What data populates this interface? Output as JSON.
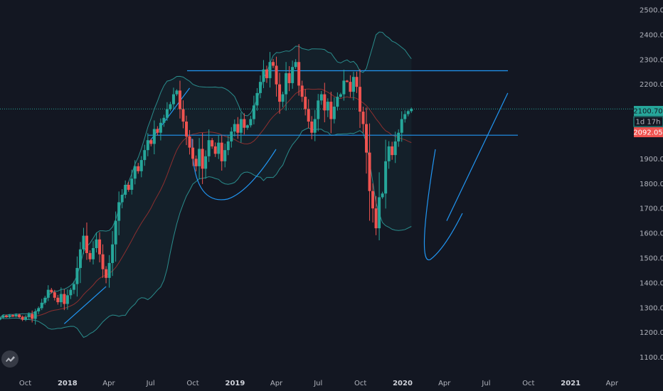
{
  "colors": {
    "background": "#131722",
    "up_candle": "#26a69a",
    "down_candle": "#ef5350",
    "bollinger_band": "#2a8c8c",
    "moving_average": "#8c2f2f",
    "drawing": "#2196f3",
    "price_line": "#26a69a",
    "axis_text": "#b2b5be"
  },
  "logo_icon": "tradingview-logo-icon",
  "price_tags": {
    "last_price": "2100.70",
    "countdown": "1d 17h",
    "prev_close": "2092.05"
  },
  "chart_data": {
    "type": "candlestick",
    "interval": "weekly",
    "y_axis": {
      "ticks": [
        1100,
        1200,
        1300,
        1400,
        1500,
        1600,
        1700,
        1800,
        1900,
        2000,
        2100,
        2200,
        2300,
        2400,
        2500
      ],
      "tick_labels": [
        "1100.00",
        "1200.00",
        "1300.00",
        "1400.00",
        "1500.00",
        "1600.00",
        "1700.00",
        "1800.00",
        "1900.00",
        "2000.00",
        "2100.00",
        "2200.00",
        "2300.00",
        "2400.00",
        "2500.00"
      ],
      "range": [
        1030,
        2540
      ]
    },
    "x_axis": {
      "range": [
        "2017-08-07",
        "2021-05-17"
      ],
      "ticks": [
        "2017-10-01",
        "2018-01-01",
        "2018-04-01",
        "2018-07-01",
        "2018-10-01",
        "2019-01-01",
        "2019-04-01",
        "2019-07-01",
        "2019-10-01",
        "2020-01-01",
        "2020-04-01",
        "2020-07-01",
        "2020-10-01",
        "2021-01-01",
        "2021-04-01"
      ],
      "tick_labels": [
        "Oct",
        "2018",
        "Apr",
        "Jul",
        "Oct",
        "2019",
        "Apr",
        "Jul",
        "Oct",
        "2020",
        "Apr",
        "Jul",
        "Oct",
        "2021",
        "Apr"
      ],
      "bold_labels": [
        "2018",
        "2019",
        "2020",
        "2021"
      ]
    },
    "candles": {
      "start_week": "2017-08-07",
      "close": [
        1260,
        1268,
        1262,
        1270,
        1265,
        1272,
        1262,
        1252,
        1262,
        1275,
        1255,
        1285,
        1298,
        1320,
        1340,
        1372,
        1362,
        1340,
        1322,
        1355,
        1315,
        1350,
        1372,
        1395,
        1460,
        1535,
        1590,
        1520,
        1495,
        1540,
        1575,
        1515,
        1455,
        1420,
        1480,
        1555,
        1650,
        1725,
        1755,
        1795,
        1775,
        1820,
        1870,
        1850,
        1895,
        1935,
        1975,
        1960,
        2020,
        2005,
        2045,
        2065,
        2100,
        2120,
        2160,
        2175,
        2100,
        2050,
        1990,
        1945,
        1900,
        1870,
        1940,
        1860,
        1910,
        1975,
        1950,
        1920,
        1965,
        1890,
        1935,
        1970,
        2010,
        2040,
        2005,
        2060,
        2025,
        2035,
        2060,
        2115,
        2165,
        2210,
        2260,
        2225,
        2290,
        2275,
        2200,
        2130,
        2160,
        2245,
        2205,
        2270,
        2290,
        2195,
        2150,
        2100,
        2050,
        2005,
        2060,
        2135,
        2160,
        2095,
        2130,
        2060,
        2110,
        2150,
        2160,
        2215,
        2210,
        2170,
        2230,
        2190,
        2090,
        2040,
        1925,
        1770,
        1700,
        1620,
        1745,
        1760,
        1890,
        1950,
        1915,
        1970,
        2005,
        2060,
        2080,
        2092,
        2101
      ],
      "palette_weeks": "Weekly closes starting at the week of 2017-08-07"
    },
    "annotations": {
      "horizontal_lines": [
        2255,
        1995
      ],
      "trend_lines": [
        {
          "from": [
            "2017-12-25",
            1235
          ],
          "to": [
            "2018-03-26",
            1385
          ]
        },
        {
          "from": [
            "2018-06-25",
            1960
          ],
          "to": [
            "2018-09-24",
            2185
          ]
        },
        {
          "from": [
            "2020-04-06",
            1650
          ],
          "to": [
            "2020-08-17",
            2165
          ]
        }
      ]
    }
  }
}
